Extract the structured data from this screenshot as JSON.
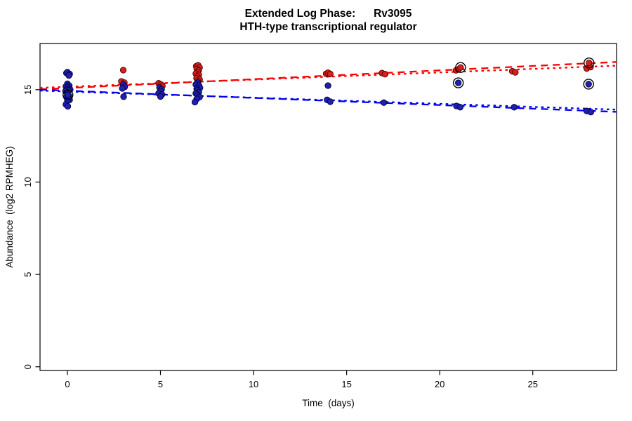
{
  "header": {
    "title_line1": "Extended Log Phase:      Rv3095",
    "title_line2": "HTH-type transcriptional regulator"
  },
  "chart_data": {
    "type": "scatter",
    "title": "Extended Log Phase:      Rv3095",
    "subtitle": "HTH-type transcriptional regulator",
    "xlabel": "Time  (days)",
    "ylabel": "Abundance  (log2 RPMHEG)",
    "xlim": [
      -1.47,
      29.5
    ],
    "ylim": [
      -0.2,
      17.5
    ],
    "x_ticks": [
      0,
      5,
      10,
      15,
      20,
      25
    ],
    "y_ticks": [
      0,
      5,
      10,
      15
    ],
    "grid": false,
    "legend": "none",
    "colors": {
      "red_point_fill": "#d8201a",
      "red_point_stroke": "#4d0000",
      "blue_point_fill": "#1f1fb4",
      "blue_point_stroke": "#000033",
      "red_line": "#ff0000",
      "blue_line": "#0000f0",
      "outlier_ring": "#000000"
    },
    "series": [
      {
        "name": "red-series",
        "marker": "filled-circle",
        "color": "#d8201a",
        "points": [
          [
            3.0,
            16.06
          ],
          [
            2.9,
            15.45
          ],
          [
            3.06,
            15.38
          ],
          [
            4.9,
            15.35
          ],
          [
            5.02,
            15.28
          ],
          [
            5.1,
            15.2
          ],
          [
            6.92,
            16.27
          ],
          [
            7.02,
            16.32
          ],
          [
            7.1,
            16.2
          ],
          [
            6.95,
            16.12
          ],
          [
            7.05,
            16.04
          ],
          [
            7.0,
            15.96
          ],
          [
            6.9,
            15.87
          ],
          [
            7.06,
            15.8
          ],
          [
            6.98,
            15.72
          ],
          [
            6.94,
            15.62
          ],
          [
            7.1,
            15.55
          ],
          [
            7.0,
            15.47
          ],
          [
            13.9,
            15.86
          ],
          [
            14.0,
            15.92
          ],
          [
            14.12,
            15.85
          ],
          [
            16.9,
            15.9
          ],
          [
            17.06,
            15.84
          ],
          [
            20.88,
            16.05
          ],
          [
            21.0,
            16.1
          ],
          [
            23.9,
            16.0
          ],
          [
            24.06,
            15.94
          ],
          [
            27.9,
            16.15
          ],
          [
            28.1,
            16.22
          ]
        ]
      },
      {
        "name": "blue-series",
        "marker": "filled-circle",
        "color": "#1f1fb4",
        "points": [
          [
            -0.05,
            15.9
          ],
          [
            0.0,
            15.95
          ],
          [
            0.12,
            15.85
          ],
          [
            0.08,
            15.77
          ],
          [
            0.0,
            15.32
          ],
          [
            0.1,
            15.22
          ],
          [
            -0.08,
            15.17
          ],
          [
            0.03,
            15.12
          ],
          [
            0.12,
            15.06
          ],
          [
            -0.03,
            15.0
          ],
          [
            0.15,
            15.0
          ],
          [
            0.06,
            14.96
          ],
          [
            -0.1,
            14.92
          ],
          [
            0.0,
            14.78
          ],
          [
            0.08,
            14.67
          ],
          [
            -0.05,
            14.6
          ],
          [
            0.05,
            14.52
          ],
          [
            0.12,
            14.45
          ],
          [
            0.0,
            14.38
          ],
          [
            -0.08,
            14.2
          ],
          [
            0.02,
            14.1
          ],
          [
            3.0,
            15.28
          ],
          [
            3.08,
            15.15
          ],
          [
            2.95,
            15.07
          ],
          [
            3.02,
            14.62
          ],
          [
            4.95,
            15.12
          ],
          [
            5.06,
            15.02
          ],
          [
            5.0,
            14.92
          ],
          [
            4.9,
            14.8
          ],
          [
            5.08,
            14.74
          ],
          [
            5.0,
            14.63
          ],
          [
            7.0,
            15.38
          ],
          [
            6.9,
            15.28
          ],
          [
            7.07,
            15.22
          ],
          [
            7.12,
            15.1
          ],
          [
            6.95,
            15.05
          ],
          [
            7.0,
            14.97
          ],
          [
            7.06,
            14.87
          ],
          [
            6.9,
            14.8
          ],
          [
            7.0,
            14.7
          ],
          [
            7.1,
            14.6
          ],
          [
            6.95,
            14.5
          ],
          [
            6.85,
            14.33
          ],
          [
            14.0,
            15.22
          ],
          [
            13.95,
            14.45
          ],
          [
            14.12,
            14.35
          ],
          [
            17.0,
            14.3
          ],
          [
            20.9,
            14.12
          ],
          [
            21.1,
            14.05
          ],
          [
            24.0,
            14.05
          ],
          [
            27.9,
            13.85
          ],
          [
            28.12,
            13.79
          ]
        ]
      },
      {
        "name": "red-outliers-circled",
        "marker": "circled-point",
        "color": "#d8201a",
        "points": [
          [
            21.12,
            16.2
          ],
          [
            28.02,
            16.45
          ]
        ]
      },
      {
        "name": "blue-outliers-circled",
        "marker": "circled-point",
        "color": "#1f1fb4",
        "points": [
          [
            0.03,
            14.72
          ],
          [
            21.0,
            15.37
          ],
          [
            28.0,
            15.3
          ]
        ]
      }
    ],
    "trend_lines": [
      {
        "name": "red-fit-dashed",
        "color": "#ff0000",
        "style": "dashed",
        "x1": -1.47,
        "y1": 15.02,
        "x2": 29.5,
        "y2": 16.5
      },
      {
        "name": "red-fit-dotted",
        "color": "#ff0000",
        "style": "dotted",
        "x1": -1.47,
        "y1": 15.1,
        "x2": 29.5,
        "y2": 16.3
      },
      {
        "name": "blue-fit-dashed",
        "color": "#0000f0",
        "style": "dashed",
        "x1": -1.47,
        "y1": 15.0,
        "x2": 29.5,
        "y2": 13.8
      },
      {
        "name": "blue-fit-dotted",
        "color": "#0000f0",
        "style": "dotted",
        "x1": -1.47,
        "y1": 14.95,
        "x2": 29.5,
        "y2": 13.92
      }
    ]
  }
}
